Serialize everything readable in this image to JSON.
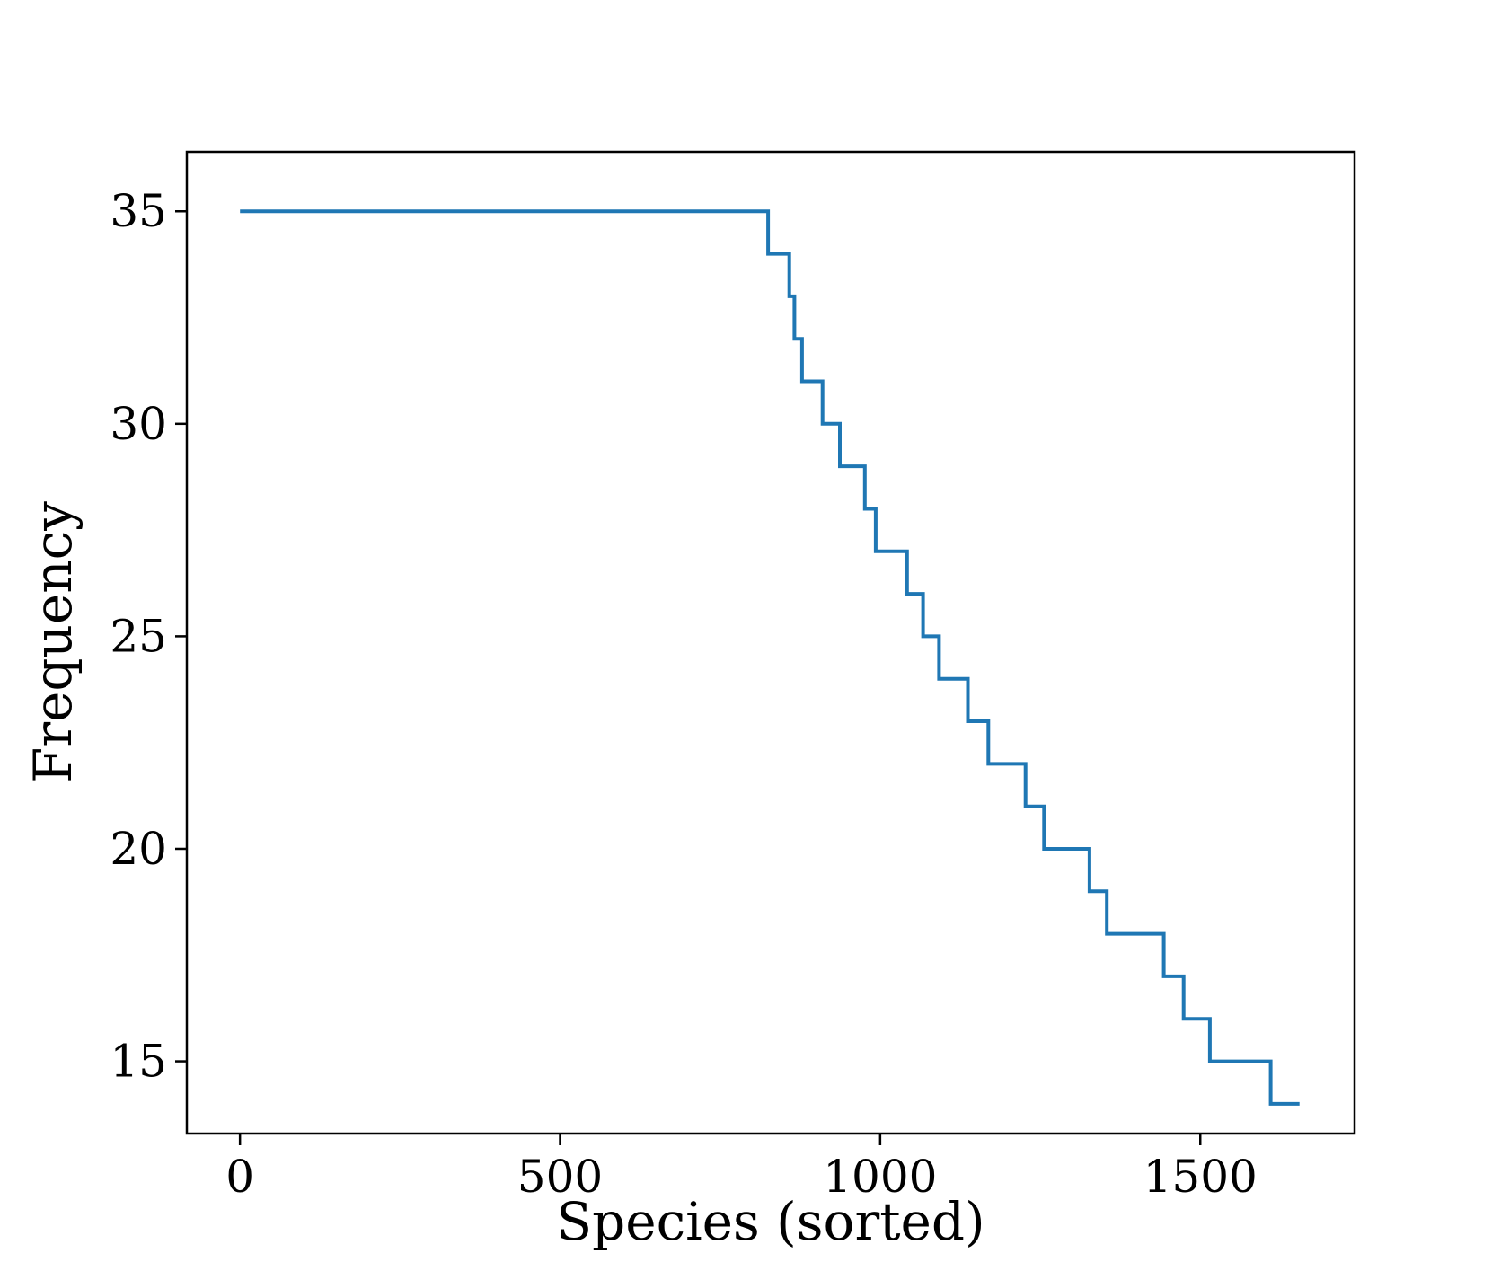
{
  "chart_data": {
    "type": "line",
    "drawstyle": "steps-post",
    "xlabel": "Species (sorted)",
    "ylabel": "Frequency",
    "xlim": [
      -83,
      1741
    ],
    "ylim": [
      13.3,
      36.4
    ],
    "xticks": [
      0,
      500,
      1000,
      1500
    ],
    "yticks": [
      15,
      20,
      25,
      30,
      35
    ],
    "xtick_labels": [
      "0",
      "500",
      "1000",
      "1500"
    ],
    "ytick_labels": [
      "15",
      "20",
      "25",
      "30",
      "35"
    ],
    "grid": false,
    "series": [
      {
        "color": "#1f77b4",
        "x": [
          0,
          825,
          858,
          866,
          878,
          910,
          937,
          976,
          993,
          1042,
          1067,
          1092,
          1137,
          1169,
          1227,
          1256,
          1327,
          1354,
          1443,
          1474,
          1515,
          1610,
          1655
        ],
        "y": [
          35,
          34,
          33,
          32,
          31,
          30,
          29,
          28,
          27,
          26,
          25,
          24,
          23,
          22,
          21,
          20,
          19,
          18,
          17,
          16,
          15,
          14,
          14
        ]
      }
    ]
  }
}
